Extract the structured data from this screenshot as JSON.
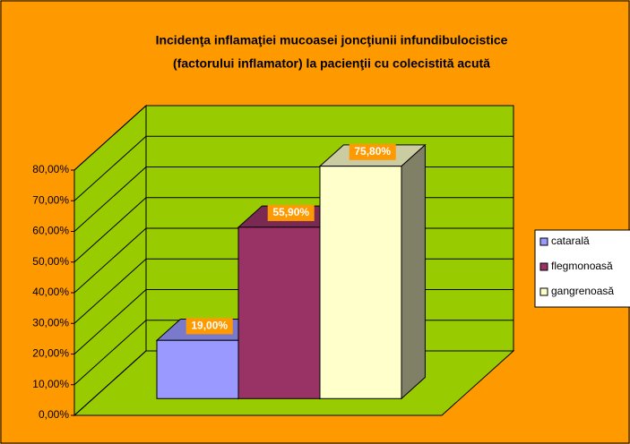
{
  "chart_data": {
    "type": "bar3d",
    "title": [
      "Incidenţa inflamaţiei mucoasei joncţiunii infundibulocistice",
      "(factorului inflamator) la pacienţii cu colecistită acută"
    ],
    "series": [
      {
        "name": "catarală",
        "color": "#9999ff",
        "values": [
          19.0
        ],
        "value_labels": [
          "19,00%"
        ]
      },
      {
        "name": "flegmonoasă",
        "color": "#993366",
        "values": [
          55.9
        ],
        "value_labels": [
          "55,90%"
        ]
      },
      {
        "name": "gangrenoasă",
        "color": "#ffffcc",
        "values": [
          75.8
        ],
        "value_labels": [
          "75,80%"
        ]
      }
    ],
    "ylim": [
      0,
      80
    ],
    "yticks": [
      {
        "value": 0,
        "label": "0,00%"
      },
      {
        "value": 10,
        "label": "10,00%"
      },
      {
        "value": 20,
        "label": "20,00%"
      },
      {
        "value": 30,
        "label": "30,00%"
      },
      {
        "value": 40,
        "label": "40,00%"
      },
      {
        "value": 50,
        "label": "50,00%"
      },
      {
        "value": 60,
        "label": "60,00%"
      },
      {
        "value": 70,
        "label": "70,00%"
      },
      {
        "value": 80,
        "label": "80,00%"
      }
    ],
    "grid": true,
    "wall_color": "#99cc00",
    "legend": "right"
  }
}
